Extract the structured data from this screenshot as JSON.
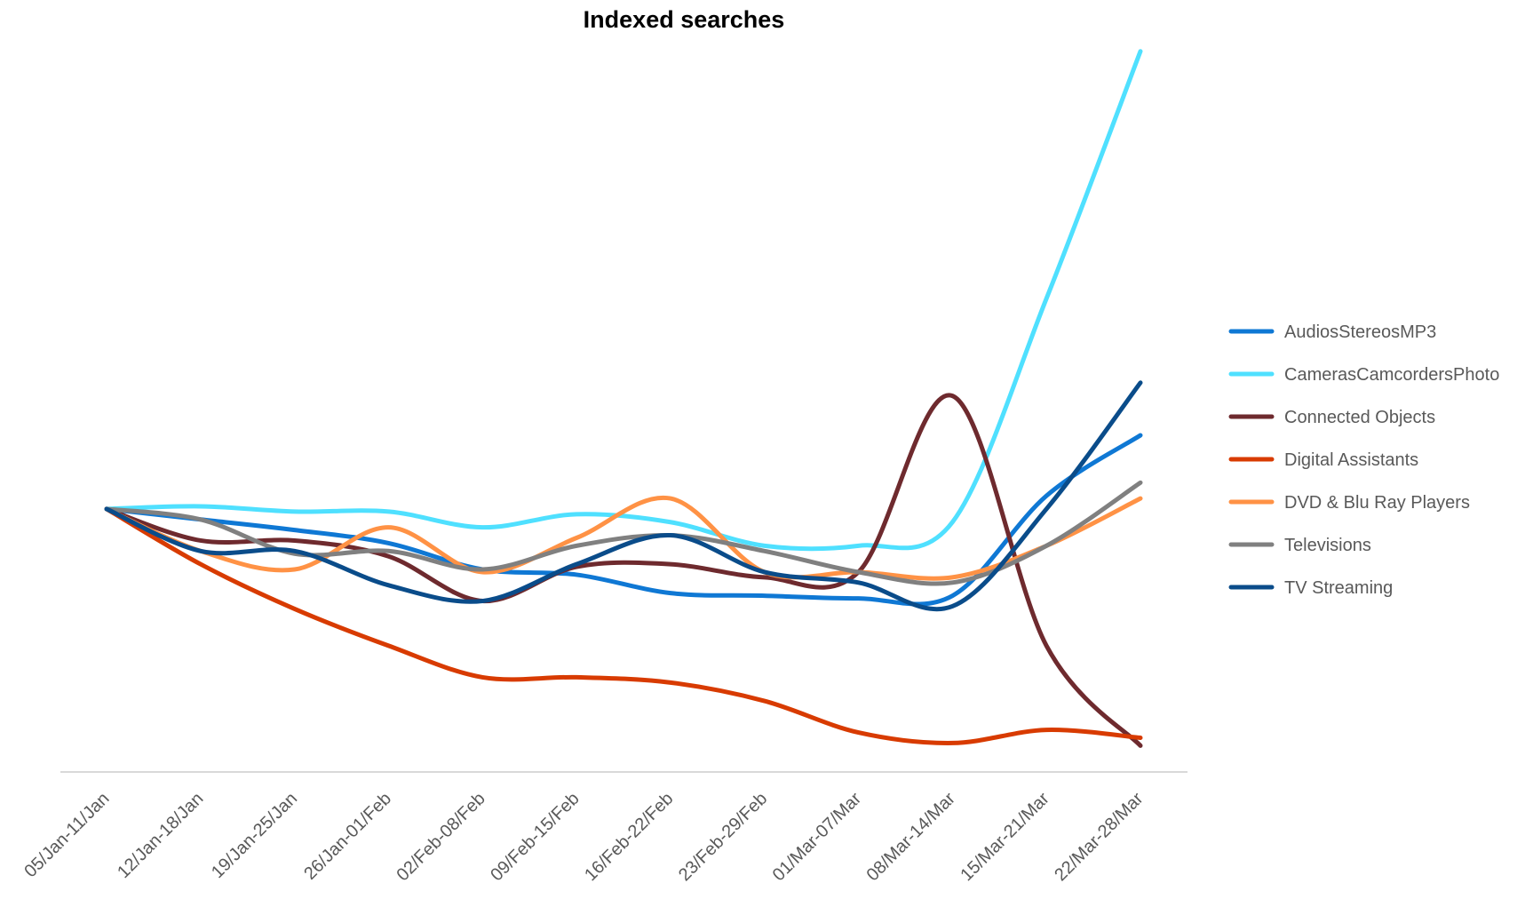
{
  "chart_data": {
    "type": "line",
    "title": "Indexed searches",
    "xlabel": "",
    "ylabel": "",
    "x_axis_line": true,
    "y_axis_shown": false,
    "grid": false,
    "legend_position": "right",
    "smooth_lines": true,
    "ylim": [
      0,
      280
    ],
    "categories": [
      "05/Jan-11/Jan",
      "12/Jan-18/Jan",
      "19/Jan-25/Jan",
      "26/Jan-01/Feb",
      "02/Feb-08/Feb",
      "09/Feb-15/Feb",
      "16/Feb-22/Feb",
      "23/Feb-29/Feb",
      "01/Mar-07/Mar",
      "08/Mar-14/Mar",
      "15/Mar-21/Mar",
      "22/Mar-28/Mar"
    ],
    "series": [
      {
        "name": "AudiosStereosMP3",
        "color": "#0F78D4",
        "values": [
          100,
          96,
          92,
          87,
          77,
          75,
          68,
          67,
          66,
          67,
          105,
          128
        ]
      },
      {
        "name": "CamerasCamcordersPhoto",
        "color": "#4FE0FF",
        "values": [
          100,
          101,
          99,
          99,
          93,
          98,
          95,
          86,
          86,
          95,
          180,
          274
        ]
      },
      {
        "name": "Connected Objects",
        "color": "#6E2A2E",
        "values": [
          100,
          88,
          88,
          82,
          65,
          78,
          79,
          74,
          76,
          143,
          48,
          10
        ]
      },
      {
        "name": "Digital Assistants",
        "color": "#D83B01",
        "values": [
          100,
          79,
          62,
          48,
          36,
          36,
          34,
          27,
          15,
          11,
          16,
          13
        ]
      },
      {
        "name": "DVD & Blu Ray Players",
        "color": "#FF9245",
        "values": [
          100,
          84,
          77,
          93,
          76,
          89,
          104,
          76,
          76,
          74,
          86,
          104
        ]
      },
      {
        "name": "Televisions",
        "color": "#808080",
        "values": [
          100,
          96,
          83,
          84,
          77,
          86,
          90,
          84,
          76,
          72,
          86,
          110
        ]
      },
      {
        "name": "TV Streaming",
        "color": "#0A4C8A",
        "values": [
          100,
          84,
          84,
          71,
          65,
          79,
          90,
          76,
          72,
          63,
          100,
          148
        ]
      }
    ]
  }
}
